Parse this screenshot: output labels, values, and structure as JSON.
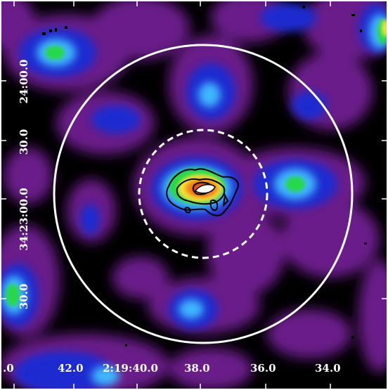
{
  "image": {
    "type": "astronomical-false-color-map",
    "colormap": [
      "#000000",
      "#5a0f74",
      "#7a2aa0",
      "#1f2ac8",
      "#2a8cf0",
      "#4fe0ff",
      "#27d84a",
      "#f6e23a",
      "#f38a16",
      "#e01010",
      "#ffffff"
    ],
    "frame_color": "#ffffff",
    "contour_color": "#000000",
    "outer_circle": {
      "style": "solid",
      "color": "#ffffff"
    },
    "inner_circle": {
      "style": "dashed",
      "color": "#ffffff"
    }
  },
  "axes": {
    "x_tick_labels": [
      ".0",
      "42.0",
      "2:19:40.0",
      "38.0",
      "36.0",
      "34.0"
    ],
    "y_tick_labels": [
      "24:00.0",
      "30.0",
      "34:23:00.0",
      "30.0"
    ]
  }
}
